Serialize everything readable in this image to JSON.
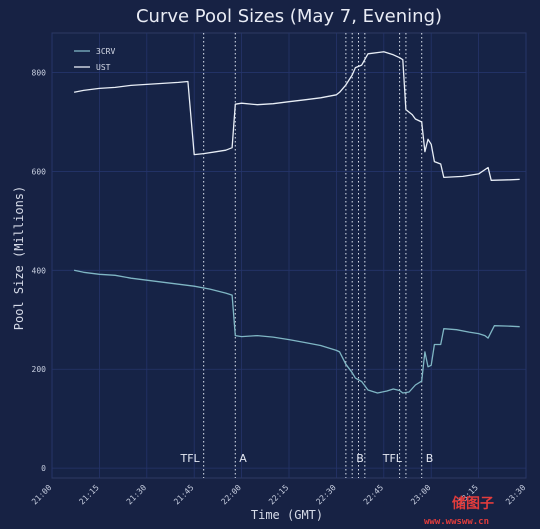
{
  "chart_data": {
    "type": "line",
    "title": "Curve Pool Sizes (May 7, Evening)",
    "xlabel": "Time (GMT)",
    "ylabel": "Pool Size (Millions)",
    "xlim": [
      "21:00",
      "23:30"
    ],
    "ylim": [
      -20,
      880
    ],
    "grid": true,
    "legend": "top-left",
    "x_ticks": [
      "21:00",
      "21:15",
      "21:30",
      "21:45",
      "22:00",
      "22:15",
      "22:30",
      "22:45",
      "23:00",
      "23:15",
      "23:30"
    ],
    "y_ticks": [
      0,
      200,
      400,
      600,
      800
    ],
    "events": [
      {
        "time": "21:48",
        "label": "TFL"
      },
      {
        "time": "21:58",
        "label": "A"
      },
      {
        "time": "22:33",
        "label": ""
      },
      {
        "time": "22:35",
        "label": "B"
      },
      {
        "time": "22:37",
        "label": ""
      },
      {
        "time": "22:39",
        "label": ""
      },
      {
        "time": "22:50",
        "label": ""
      },
      {
        "time": "22:52",
        "label": "TFL"
      },
      {
        "time": "22:57",
        "label": "B"
      }
    ],
    "series": [
      {
        "name": "3CRV",
        "color": "#7fb6c4",
        "points": [
          [
            "21:07",
            400
          ],
          [
            "21:10",
            396
          ],
          [
            "21:15",
            392
          ],
          [
            "21:20",
            390
          ],
          [
            "21:25",
            384
          ],
          [
            "21:30",
            380
          ],
          [
            "21:35",
            376
          ],
          [
            "21:40",
            372
          ],
          [
            "21:45",
            368
          ],
          [
            "21:50",
            362
          ],
          [
            "21:55",
            354
          ],
          [
            "21:57",
            350
          ],
          [
            "21:58",
            268
          ],
          [
            "22:00",
            266
          ],
          [
            "22:05",
            268
          ],
          [
            "22:10",
            265
          ],
          [
            "22:15",
            260
          ],
          [
            "22:20",
            254
          ],
          [
            "22:25",
            248
          ],
          [
            "22:30",
            238
          ],
          [
            "22:31",
            235
          ],
          [
            "22:33",
            210
          ],
          [
            "22:35",
            193
          ],
          [
            "22:36",
            182
          ],
          [
            "22:38",
            175
          ],
          [
            "22:40",
            158
          ],
          [
            "22:43",
            152
          ],
          [
            "22:46",
            156
          ],
          [
            "22:48",
            160
          ],
          [
            "22:50",
            157
          ],
          [
            "22:51",
            152
          ],
          [
            "22:53",
            154
          ],
          [
            "22:55",
            168
          ],
          [
            "22:57",
            176
          ],
          [
            "22:58",
            235
          ],
          [
            "22:59",
            205
          ],
          [
            "23:00",
            208
          ],
          [
            "23:01",
            250
          ],
          [
            "23:03",
            250
          ],
          [
            "23:04",
            282
          ],
          [
            "23:08",
            280
          ],
          [
            "23:12",
            275
          ],
          [
            "23:15",
            272
          ],
          [
            "23:17",
            268
          ],
          [
            "23:18",
            263
          ],
          [
            "23:20",
            288
          ],
          [
            "23:25",
            287
          ],
          [
            "23:28",
            286
          ]
        ]
      },
      {
        "name": "UST",
        "color": "#e8eef6",
        "points": [
          [
            "21:07",
            760
          ],
          [
            "21:10",
            764
          ],
          [
            "21:15",
            768
          ],
          [
            "21:20",
            770
          ],
          [
            "21:25",
            774
          ],
          [
            "21:30",
            776
          ],
          [
            "21:35",
            778
          ],
          [
            "21:40",
            780
          ],
          [
            "21:43",
            782
          ],
          [
            "21:45",
            634
          ],
          [
            "21:48",
            636
          ],
          [
            "21:52",
            640
          ],
          [
            "21:55",
            643
          ],
          [
            "21:57",
            648
          ],
          [
            "21:58",
            736
          ],
          [
            "22:00",
            738
          ],
          [
            "22:05",
            735
          ],
          [
            "22:10",
            737
          ],
          [
            "22:15",
            741
          ],
          [
            "22:20",
            745
          ],
          [
            "22:25",
            749
          ],
          [
            "22:30",
            755
          ],
          [
            "22:31",
            760
          ],
          [
            "22:33",
            775
          ],
          [
            "22:35",
            795
          ],
          [
            "22:36",
            810
          ],
          [
            "22:38",
            815
          ],
          [
            "22:40",
            838
          ],
          [
            "22:45",
            842
          ],
          [
            "22:48",
            836
          ],
          [
            "22:50",
            830
          ],
          [
            "22:51",
            826
          ],
          [
            "22:52",
            725
          ],
          [
            "22:54",
            715
          ],
          [
            "22:55",
            706
          ],
          [
            "22:57",
            700
          ],
          [
            "22:58",
            640
          ],
          [
            "22:59",
            665
          ],
          [
            "23:00",
            655
          ],
          [
            "23:01",
            620
          ],
          [
            "23:03",
            615
          ],
          [
            "23:04",
            588
          ],
          [
            "23:10",
            590
          ],
          [
            "23:15",
            595
          ],
          [
            "23:18",
            608
          ],
          [
            "23:19",
            582
          ],
          [
            "23:25",
            583
          ],
          [
            "23:28",
            584
          ]
        ]
      }
    ]
  },
  "watermark": {
    "brand": "储图子",
    "url": "www.wwsww.cn"
  }
}
